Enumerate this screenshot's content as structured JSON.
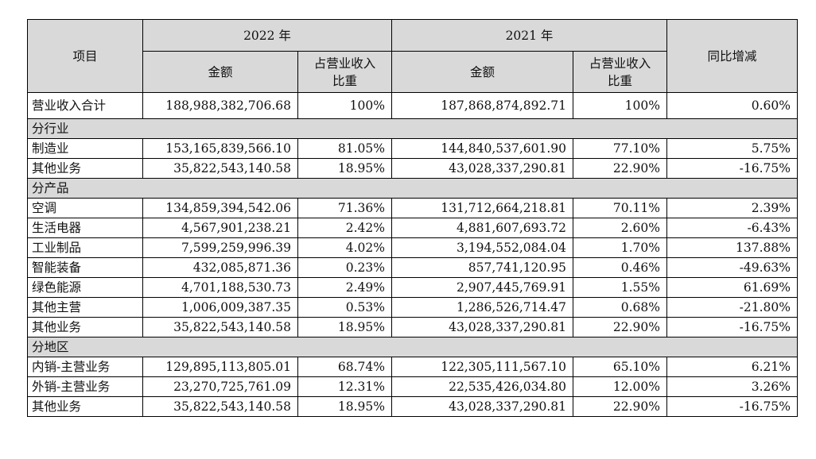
{
  "header": {
    "item": "项目",
    "year_2022": "2022 年",
    "year_2021": "2021 年",
    "amount": "金额",
    "ratio_line1": "占营业收入",
    "ratio_line2": "比重",
    "yoy": "同比增减"
  },
  "total": {
    "name": "营业收入合计",
    "amt2022": "188,988,382,706.68",
    "pct2022": "100%",
    "amt2021": "187,868,874,892.71",
    "pct2021": "100%",
    "yoy": "0.60%"
  },
  "sections": [
    {
      "title": "分行业",
      "rows": [
        {
          "name": "制造业",
          "amt2022": "153,165,839,566.10",
          "pct2022": "81.05%",
          "amt2021": "144,840,537,601.90",
          "pct2021": "77.10%",
          "yoy": "5.75%"
        },
        {
          "name": "其他业务",
          "amt2022": "35,822,543,140.58",
          "pct2022": "18.95%",
          "amt2021": "43,028,337,290.81",
          "pct2021": "22.90%",
          "yoy": "-16.75%"
        }
      ]
    },
    {
      "title": "分产品",
      "rows": [
        {
          "name": "空调",
          "amt2022": "134,859,394,542.06",
          "pct2022": "71.36%",
          "amt2021": "131,712,664,218.81",
          "pct2021": "70.11%",
          "yoy": "2.39%"
        },
        {
          "name": "生活电器",
          "amt2022": "4,567,901,238.21",
          "pct2022": "2.42%",
          "amt2021": "4,881,607,693.72",
          "pct2021": "2.60%",
          "yoy": "-6.43%"
        },
        {
          "name": "工业制品",
          "amt2022": "7,599,259,996.39",
          "pct2022": "4.02%",
          "amt2021": "3,194,552,084.04",
          "pct2021": "1.70%",
          "yoy": "137.88%"
        },
        {
          "name": "智能装备",
          "amt2022": "432,085,871.36",
          "pct2022": "0.23%",
          "amt2021": "857,741,120.95",
          "pct2021": "0.46%",
          "yoy": "-49.63%"
        },
        {
          "name": "绿色能源",
          "amt2022": "4,701,188,530.73",
          "pct2022": "2.49%",
          "amt2021": "2,907,445,769.91",
          "pct2021": "1.55%",
          "yoy": "61.69%"
        },
        {
          "name": "其他主营",
          "amt2022": "1,006,009,387.35",
          "pct2022": "0.53%",
          "amt2021": "1,286,526,714.47",
          "pct2021": "0.68%",
          "yoy": "-21.80%"
        },
        {
          "name": "其他业务",
          "amt2022": "35,822,543,140.58",
          "pct2022": "18.95%",
          "amt2021": "43,028,337,290.81",
          "pct2021": "22.90%",
          "yoy": "-16.75%"
        }
      ]
    },
    {
      "title": "分地区",
      "rows": [
        {
          "name": "内销-主营业务",
          "amt2022": "129,895,113,805.01",
          "pct2022": "68.74%",
          "amt2021": "122,305,111,567.10",
          "pct2021": "65.10%",
          "yoy": "6.21%"
        },
        {
          "name": "外销-主营业务",
          "amt2022": "23,270,725,761.09",
          "pct2022": "12.31%",
          "amt2021": "22,535,426,034.80",
          "pct2021": "12.00%",
          "yoy": "3.26%"
        },
        {
          "name": "其他业务",
          "amt2022": "35,822,543,140.58",
          "pct2022": "18.95%",
          "amt2021": "43,028,337,290.81",
          "pct2021": "22.90%",
          "yoy": "-16.75%"
        }
      ]
    }
  ]
}
